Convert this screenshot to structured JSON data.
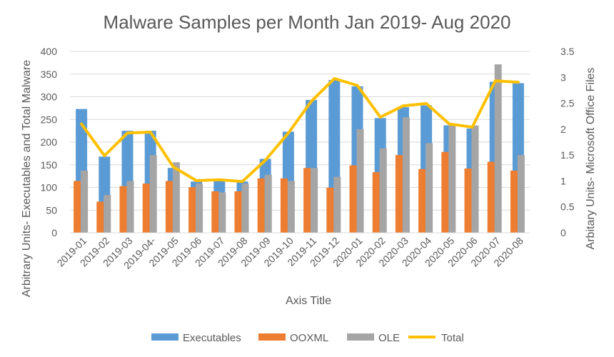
{
  "chart_data": {
    "type": "bar",
    "title": "Malware Samples per Month Jan 2019- Aug 2020",
    "xlabel": "Axis Title",
    "ylabel_left": "Arbitrary Units- Executables and Total Malware",
    "ylabel_right": "Arbitary Units- Microsoft Office Files",
    "left_ylim": [
      0,
      400
    ],
    "left_ticks": [
      "0",
      "50",
      "100",
      "150",
      "200",
      "250",
      "300",
      "350",
      "400"
    ],
    "right_ylim": [
      0,
      3.5
    ],
    "right_ticks": [
      "0",
      "0.5",
      "1",
      "1.5",
      "2",
      "2.5",
      "3",
      "3.5"
    ],
    "categories": [
      "2019-01",
      "2019-02",
      "2019-03",
      "2019-04-",
      "2019-05",
      "2019-06",
      "2019-07",
      "2019-08",
      "2019-09",
      "2019-10",
      "2019-11",
      "2019-12",
      "2020-01",
      "2020-02",
      "2020-03",
      "2020-04",
      "2020-05",
      "2020-06",
      "2020-07",
      "2020-08"
    ],
    "legend_position": "bottom",
    "grid": true,
    "series": [
      {
        "name": "Executables",
        "type": "bar",
        "axis": "left",
        "color": "#5B9BD5",
        "values": [
          273,
          168,
          225,
          225,
          143,
          113,
          115,
          113,
          163,
          223,
          293,
          337,
          323,
          253,
          277,
          281,
          237,
          230,
          333,
          330
        ]
      },
      {
        "name": "OOXML",
        "type": "bar",
        "axis": "right",
        "color": "#ED7D31",
        "values": [
          1.0,
          0.6,
          0.9,
          0.95,
          1.0,
          0.88,
          0.8,
          0.8,
          1.05,
          1.05,
          1.25,
          0.87,
          1.3,
          1.17,
          1.5,
          1.23,
          1.56,
          1.24,
          1.37,
          1.2
        ]
      },
      {
        "name": "OLE",
        "type": "bar",
        "axis": "right",
        "color": "#A5A5A5",
        "values": [
          1.2,
          0.73,
          1.0,
          1.5,
          1.36,
          0.95,
          0.78,
          0.95,
          1.12,
          1.0,
          1.25,
          1.08,
          2.0,
          1.63,
          2.23,
          1.73,
          2.07,
          2.07,
          3.25,
          1.5
        ]
      },
      {
        "name": "Total",
        "type": "line",
        "axis": "left",
        "color": "#FFC000",
        "values": [
          240,
          170,
          220,
          222,
          145,
          115,
          117,
          113,
          160,
          220,
          290,
          340,
          325,
          255,
          280,
          285,
          240,
          233,
          335,
          332
        ]
      }
    ]
  }
}
